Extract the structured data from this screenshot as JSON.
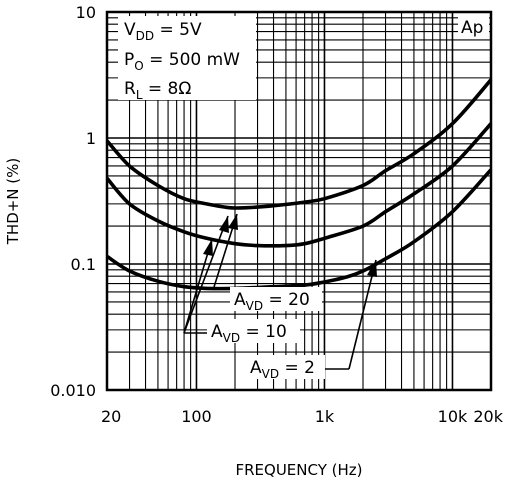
{
  "chart_data": {
    "type": "line",
    "xscale": "log",
    "yscale": "log",
    "xlim": [
      20,
      20000
    ],
    "ylim": [
      0.01,
      10
    ],
    "xlabel": "FREQUENCY (Hz)",
    "ylabel": "THD+N (%)",
    "grid": true,
    "x_ticks": [
      {
        "value": 20,
        "label": "20"
      },
      {
        "value": 100,
        "label": "100"
      },
      {
        "value": 1000,
        "label": "1k"
      },
      {
        "value": 10000,
        "label": "10k"
      },
      {
        "value": 20000,
        "label": "20k"
      }
    ],
    "y_ticks": [
      {
        "value": 10,
        "label": "10"
      },
      {
        "value": 1,
        "label": "1"
      },
      {
        "value": 0.1,
        "label": "0.1"
      },
      {
        "value": 0.01,
        "label": "0.010"
      }
    ],
    "conditions": [
      {
        "main": "V",
        "sub": "DD",
        "rest": " = 5V"
      },
      {
        "main": "P",
        "sub": "O",
        "rest": " = 500 mW"
      },
      {
        "main": "R",
        "sub": "L",
        "rest": " = 8Ω"
      }
    ],
    "corner_tag": "Ap",
    "series": [
      {
        "label": {
          "main": "A",
          "sub": "VD",
          "rest": " = 20"
        },
        "x": [
          20,
          30,
          50,
          80,
          120,
          180,
          250,
          400,
          700,
          1000,
          2000,
          3000,
          5000,
          10000,
          20000
        ],
        "y": [
          0.95,
          0.6,
          0.42,
          0.33,
          0.3,
          0.28,
          0.28,
          0.29,
          0.31,
          0.33,
          0.42,
          0.55,
          0.75,
          1.3,
          2.9
        ]
      },
      {
        "label": {
          "main": "A",
          "sub": "VD",
          "rest": " = 10"
        },
        "x": [
          20,
          30,
          50,
          80,
          120,
          200,
          300,
          500,
          700,
          1000,
          2000,
          3000,
          5000,
          10000,
          20000
        ],
        "y": [
          0.48,
          0.3,
          0.22,
          0.18,
          0.16,
          0.145,
          0.14,
          0.14,
          0.145,
          0.16,
          0.2,
          0.26,
          0.36,
          0.6,
          1.3
        ]
      },
      {
        "label": {
          "main": "A",
          "sub": "VD",
          "rest": " = 2"
        },
        "x": [
          20,
          30,
          50,
          80,
          120,
          200,
          400,
          700,
          1000,
          1500,
          2000,
          3000,
          5000,
          10000,
          20000
        ],
        "y": [
          0.115,
          0.088,
          0.073,
          0.066,
          0.064,
          0.064,
          0.066,
          0.068,
          0.072,
          0.079,
          0.088,
          0.11,
          0.15,
          0.26,
          0.56
        ]
      }
    ]
  }
}
